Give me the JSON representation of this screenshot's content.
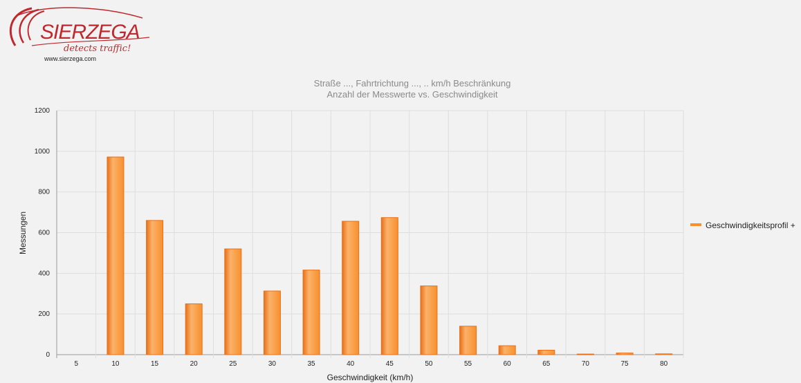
{
  "logo": {
    "brand": "SIERZEGA",
    "tagline": "detects traffic!",
    "url": "www.sierzega.com"
  },
  "colors": {
    "bar": "#f7902d",
    "bar_light": "#fbb26a",
    "bar_dark": "#e8701a",
    "grid": "#dddddd",
    "logo_red": "#c0282d"
  },
  "chart_data": {
    "type": "bar",
    "title": "Straße ..., Fahrtrichtung ..., .. km/h Beschränkung",
    "subtitle": "Anzahl der Messwerte vs. Geschwindigkeit",
    "xlabel": "Geschwindigkeit (km/h)",
    "ylabel": "Messungen",
    "categories": [
      "5",
      "10",
      "15",
      "20",
      "25",
      "30",
      "35",
      "40",
      "45",
      "50",
      "55",
      "60",
      "65",
      "70",
      "75",
      "80"
    ],
    "series": [
      {
        "name": "Geschwindigkeitsprofil +",
        "values": [
          0,
          972,
          660,
          250,
          520,
          313,
          416,
          656,
          674,
          338,
          140,
          44,
          22,
          3,
          8,
          4
        ]
      }
    ],
    "ylim": [
      0,
      1200
    ],
    "yticks": [
      0,
      200,
      400,
      600,
      800,
      1000,
      1200
    ],
    "grid": true,
    "legend": "right"
  }
}
